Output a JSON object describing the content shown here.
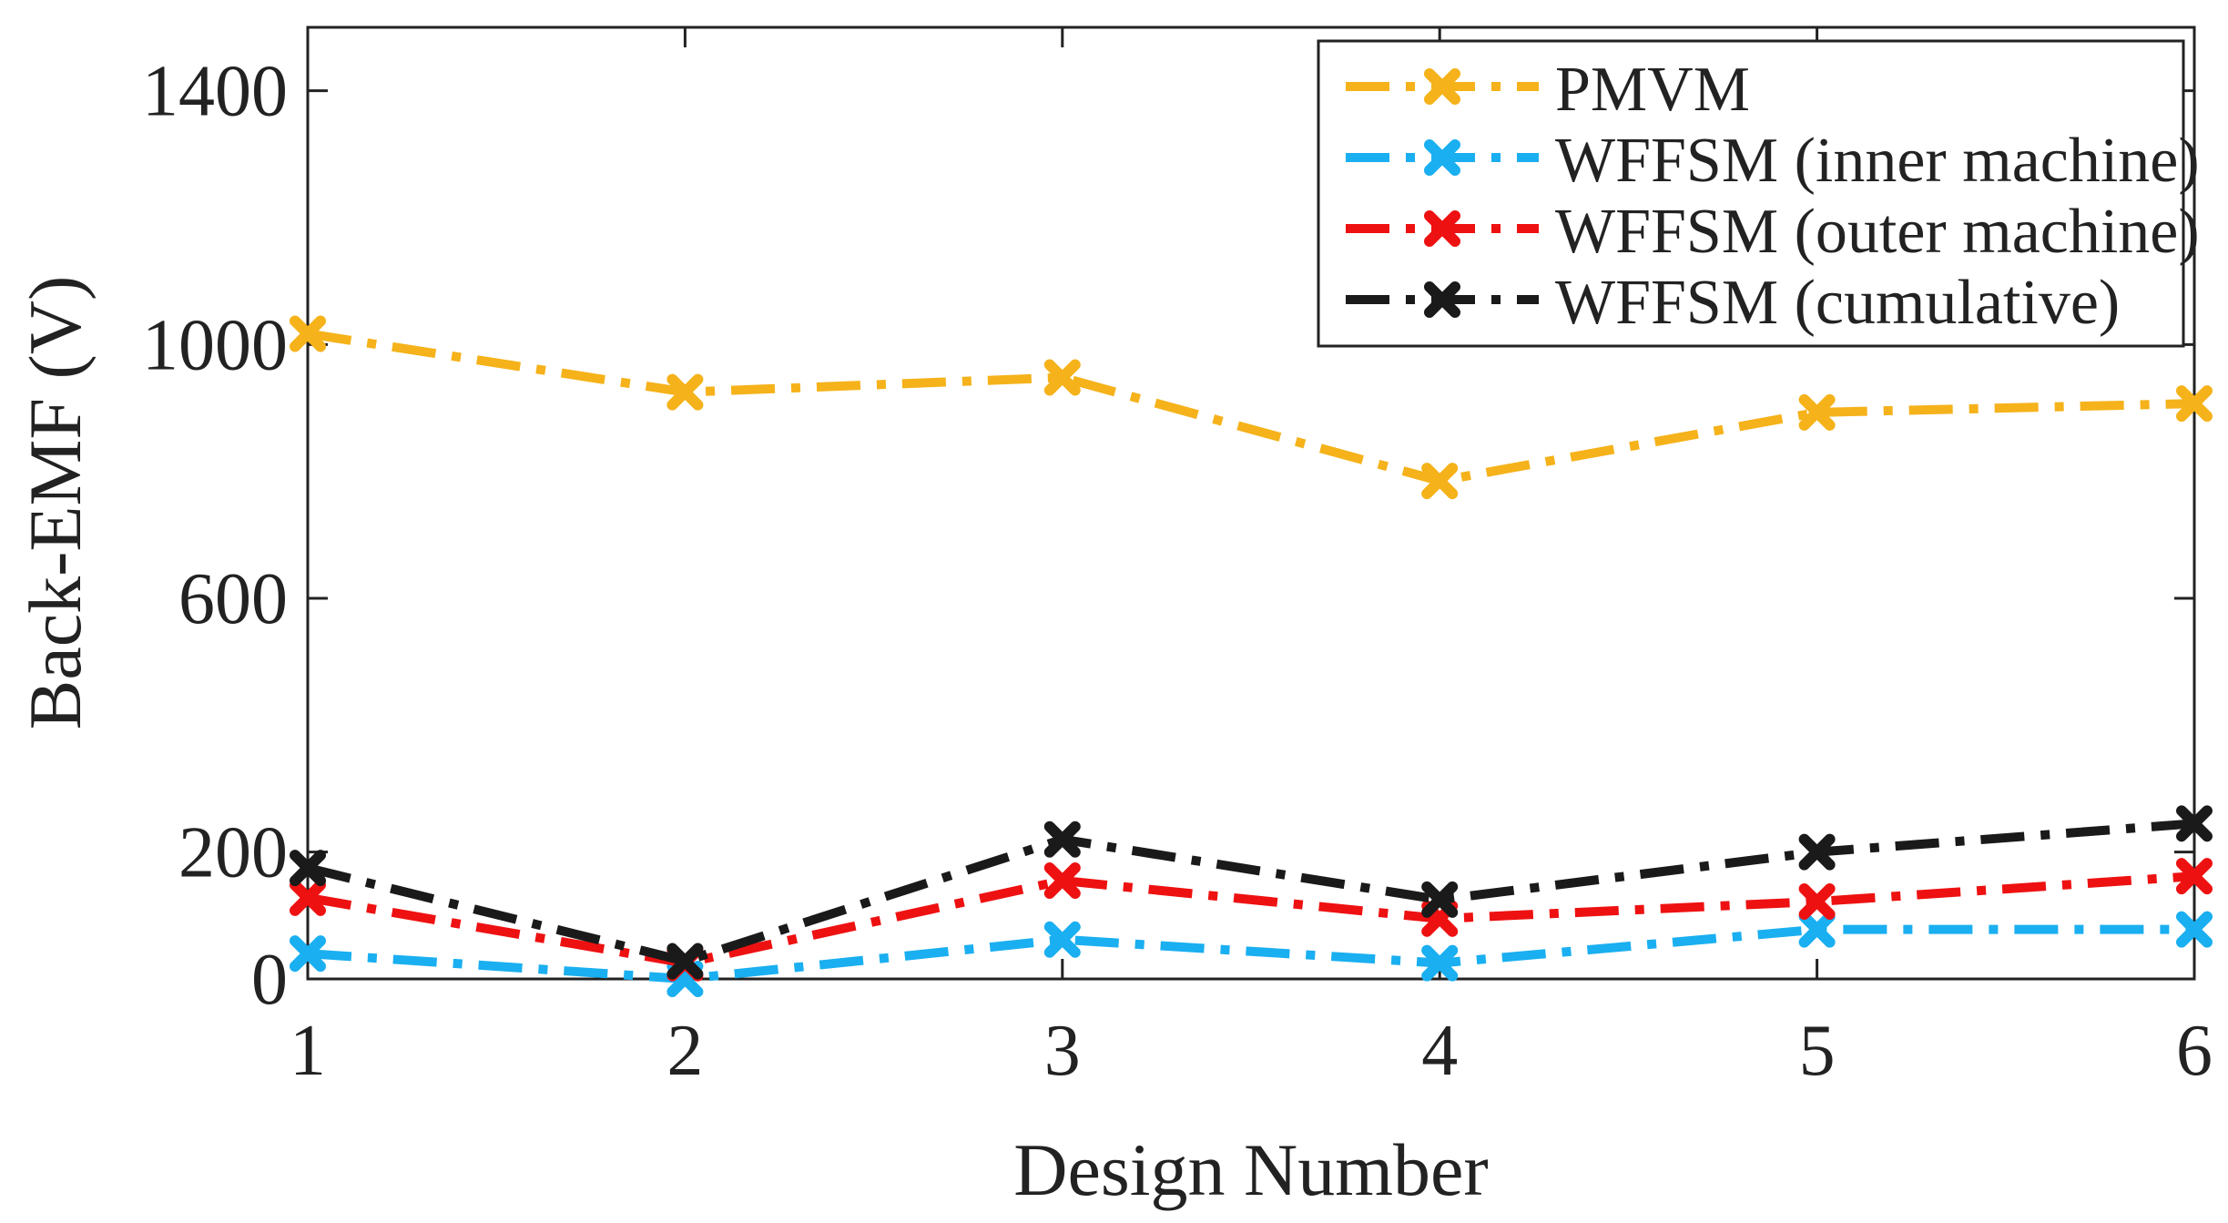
{
  "chart_data": {
    "type": "line",
    "title": "",
    "xlabel": "Design Number",
    "ylabel": "Back-EMF (V)",
    "x": [
      1,
      2,
      3,
      4,
      5,
      6
    ],
    "xlim": [
      1,
      6
    ],
    "ylim": [
      0,
      1500
    ],
    "xticks": [
      "1",
      "2",
      "3",
      "4",
      "5",
      "6"
    ],
    "yticks": [
      0,
      200,
      600,
      1000,
      1400
    ],
    "ytick_labels": [
      "0",
      "200",
      "600",
      "1000",
      "1400"
    ],
    "grid": false,
    "legend_position": "top-right",
    "series": [
      {
        "name": "PMVM",
        "color": "#F5B21A",
        "values": [
          1017,
          925,
          948,
          785,
          893,
          907
        ]
      },
      {
        "name": "WFFSM (inner machine)",
        "color": "#1AAFF0",
        "values": [
          40,
          0,
          62,
          25,
          78,
          78
        ]
      },
      {
        "name": "WFFSM (outer machine)",
        "color": "#EE1111",
        "values": [
          128,
          25,
          155,
          95,
          122,
          162
        ]
      },
      {
        "name": "WFFSM (cumulative)",
        "color": "#1A1A1A",
        "values": [
          175,
          28,
          220,
          125,
          200,
          245
        ]
      }
    ]
  }
}
